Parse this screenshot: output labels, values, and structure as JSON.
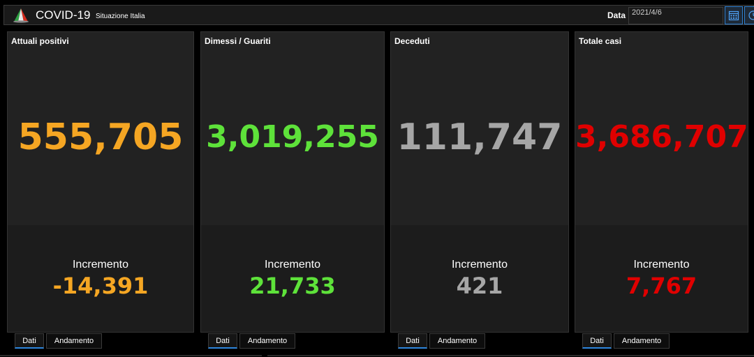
{
  "header": {
    "title": "COVID-19",
    "subtitle": "Situazione Italia",
    "date_label": "Data",
    "date_value": "2021/4/6",
    "calendar_icon": "calendar-icon",
    "clock_icon": "clock-icon"
  },
  "cards": [
    {
      "title": "Attuali positivi",
      "value": "555,705",
      "increment_label": "Incremento",
      "increment_value": "-14,391",
      "color": "#f5a623",
      "tabs": [
        "Dati",
        "Andamento"
      ]
    },
    {
      "title": "Dimessi / Guariti",
      "value": "3,019,255",
      "increment_label": "Incremento",
      "increment_value": "21,733",
      "color": "#5ee23a",
      "tabs": [
        "Dati",
        "Andamento"
      ]
    },
    {
      "title": "Deceduti",
      "value": "111,747",
      "increment_label": "Incremento",
      "increment_value": "421",
      "color": "#a6a6a6",
      "tabs": [
        "Dati",
        "Andamento"
      ]
    },
    {
      "title": "Totale casi",
      "value": "3,686,707",
      "increment_label": "Incremento",
      "increment_value": "7,767",
      "color": "#e00000",
      "tabs": [
        "Dati",
        "Andamento"
      ]
    }
  ]
}
